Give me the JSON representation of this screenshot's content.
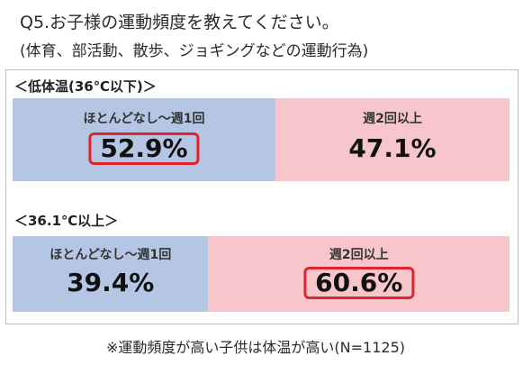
{
  "title": "Q5.お子様の運動頻度を教えてください。",
  "subtitle": "(体育、部活動、散歩、ジョギングなどの運動行為)",
  "note": "※運動頻度が高い子供は体温が高い(N=1125)",
  "colors": {
    "low": "#b4c6e4",
    "high": "#f7c6cb",
    "highlight": "#e0242e"
  },
  "chart_data": {
    "type": "bar",
    "orientation": "horizontal-stacked-100",
    "title": "Q5.お子様の運動頻度を教えてください。",
    "subtitle": "(体育、部活動、散歩、ジョギングなどの運動行為)",
    "categories": [
      "＜低体温(36℃以下)＞",
      "＜36.1℃以上＞"
    ],
    "series": [
      {
        "name": "ほとんどなし～週1回",
        "values": [
          52.9,
          39.4
        ],
        "labels": [
          "52.9%",
          "39.4%"
        ],
        "color": "#b4c6e4"
      },
      {
        "name": "週2回以上",
        "values": [
          47.1,
          60.6
        ],
        "labels": [
          "47.1%",
          "60.6%"
        ],
        "color": "#f7c6cb"
      }
    ],
    "highlighted": [
      [
        0,
        0
      ],
      [
        1,
        1
      ]
    ],
    "xlim": [
      0,
      100
    ],
    "grid": false,
    "legend": "none",
    "annotation": "※運動頻度が高い子供は体温が高い(N=1125)"
  }
}
